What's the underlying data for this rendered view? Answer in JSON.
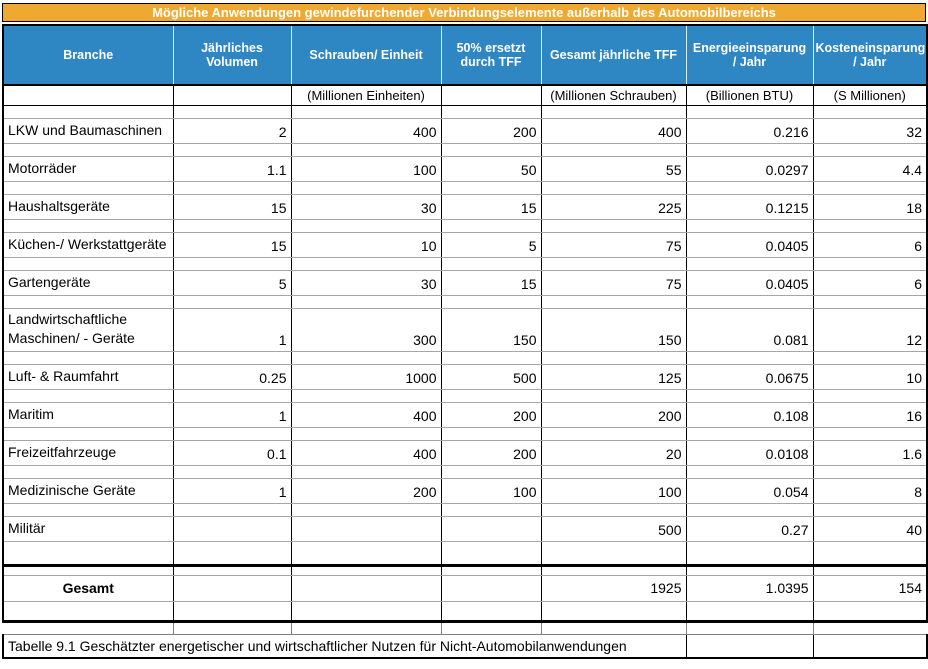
{
  "title_bar": {
    "text": "Mögliche Anwendungen gewindefurchender Verbindungselemente außerhalb des Automobilbereichs"
  },
  "colors": {
    "title_bg": "#EFA830",
    "header_bg": "#2E86C2",
    "header_text": "#FFFFFF",
    "grid_vertical": "#000000",
    "grid_horizontal": "#A6A6A6"
  },
  "table": {
    "columns": [
      {
        "label": "Branche",
        "unit": ""
      },
      {
        "label": "Jährliches\nVolumen",
        "unit": ""
      },
      {
        "label": "Schrauben/ Einheit",
        "unit": "(Millionen Einheiten)"
      },
      {
        "label": "50% ersetzt\ndurch TFF",
        "unit": ""
      },
      {
        "label": "Gesamt jährliche TFF",
        "unit": "(Millionen Schrauben)"
      },
      {
        "label": "Energieeinsparung\n/ Jahr",
        "unit": "(Billionen BTU)"
      },
      {
        "label": "Kosteneinsparung\n/ Jahr",
        "unit": "(S Millionen)"
      }
    ],
    "rows": [
      {
        "branche": "LKW und Baumaschinen",
        "values": [
          "2",
          "400",
          "200",
          "400",
          "0.216",
          "32"
        ]
      },
      {
        "branche": "Motorräder",
        "values": [
          "1.1",
          "100",
          "50",
          "55",
          "0.0297",
          "4.4"
        ]
      },
      {
        "branche": "Haushaltsgeräte",
        "values": [
          "15",
          "30",
          "15",
          "225",
          "0.1215",
          "18"
        ]
      },
      {
        "branche": "Küchen-/ Werkstattgeräte",
        "values": [
          "15",
          "10",
          "5",
          "75",
          "0.0405",
          "6"
        ]
      },
      {
        "branche": "Gartengeräte",
        "values": [
          "5",
          "30",
          "15",
          "75",
          "0.0405",
          "6"
        ]
      },
      {
        "branche": "Landwirtschaftliche\nMaschinen/ - Geräte",
        "values": [
          "1",
          "300",
          "150",
          "150",
          "0.081",
          "12"
        ]
      },
      {
        "branche": "Luft- & Raumfahrt",
        "values": [
          "0.25",
          "1000",
          "500",
          "125",
          "0.0675",
          "10"
        ]
      },
      {
        "branche": "Maritim",
        "values": [
          "1",
          "400",
          "200",
          "200",
          "0.108",
          "16"
        ]
      },
      {
        "branche": "Freizeitfahrzeuge",
        "values": [
          "0.1",
          "400",
          "200",
          "20",
          "0.0108",
          "1.6"
        ]
      },
      {
        "branche": "Medizinische Geräte",
        "values": [
          "1",
          "200",
          "100",
          "100",
          "0.054",
          "8"
        ]
      },
      {
        "branche": "Militär",
        "values": [
          "",
          "",
          "",
          "500",
          "0.27",
          "40"
        ]
      }
    ],
    "total_row": {
      "label": "Gesamt",
      "values": [
        "",
        "",
        "",
        "1925",
        "1.0395",
        "154"
      ]
    },
    "caption": "Tabelle 9.1 Geschätzter energetischer und wirtschaftlicher Nutzen für Nicht-Automobilanwendungen"
  }
}
